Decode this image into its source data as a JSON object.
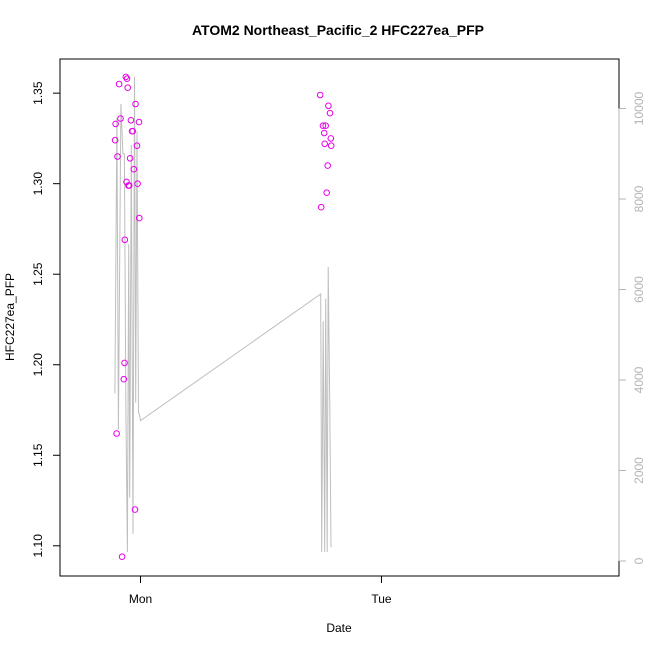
{
  "chart_data": {
    "type": "scatter",
    "title": "ATOM2 Northeast_Pacific_2 HFC227ea_PFP",
    "xlabel": "Date",
    "ylabel": "HFC227ea_PFP",
    "x_ticks": [
      "Mon",
      "Tue"
    ],
    "xlim_hours": [
      -2.8,
      20.3
    ],
    "ylim": [
      1.087,
      1.37
    ],
    "yticks": [
      1.1,
      1.15,
      1.2,
      1.25,
      1.3,
      1.35
    ],
    "y2lim": [
      -380,
      10700
    ],
    "y2ticks": [
      0,
      2000,
      4000,
      6000,
      8000,
      10000
    ],
    "grid": false,
    "colors": {
      "points": "#e800e8",
      "line": "#bebebe"
    },
    "series": [
      {
        "kind": "points",
        "axis": "left",
        "x_hours": [
          -2.53,
          -2.48,
          -2.38,
          -2.29,
          -2.13,
          -1.99,
          -1.83,
          -1.66,
          -1.59,
          -1.56,
          -1.46,
          -1.39,
          -1.34,
          -1.27,
          -1.2,
          -1.13,
          -1.04,
          -0.96,
          -0.84,
          -0.78,
          -0.67,
          -0.55,
          -0.5,
          -0.35,
          -0.29,
          -0.15,
          -0.12,
          17.9,
          18.0,
          18.18,
          18.3,
          18.35,
          18.45,
          18.55,
          18.65,
          18.72,
          18.87,
          18.95,
          18.99
        ],
        "values": [
          1.324,
          1.333,
          1.162,
          1.315,
          1.355,
          1.336,
          1.094,
          1.192,
          1.201,
          1.269,
          1.359,
          1.301,
          1.358,
          1.353,
          1.299,
          1.299,
          1.314,
          1.335,
          1.329,
          1.329,
          1.308,
          1.12,
          1.344,
          1.321,
          1.3,
          1.334,
          1.281,
          1.349,
          1.287,
          1.332,
          1.328,
          1.322,
          1.332,
          1.295,
          1.31,
          1.343,
          1.339,
          1.325,
          1.321
        ]
      },
      {
        "kind": "line",
        "axis": "right",
        "x_hours": [
          -2.55,
          -2.35,
          -2.2,
          -1.95,
          -1.75,
          -1.6,
          -1.45,
          -1.3,
          -1.18,
          -1.08,
          -0.92,
          -0.75,
          -0.6,
          -0.48,
          -0.35,
          -0.2,
          -0.08,
          0.0,
          17.95,
          18.05,
          18.2,
          18.35,
          18.45,
          18.6,
          18.7,
          18.85,
          18.97
        ],
        "values": [
          3700,
          9800,
          2900,
          10100,
          9000,
          9000,
          3300,
          200,
          7000,
          1400,
          9200,
          600,
          10700,
          3500,
          9500,
          3300,
          3200,
          3100,
          5900,
          200,
          5300,
          200,
          5800,
          200,
          6500,
          3400,
          300
        ]
      }
    ]
  }
}
